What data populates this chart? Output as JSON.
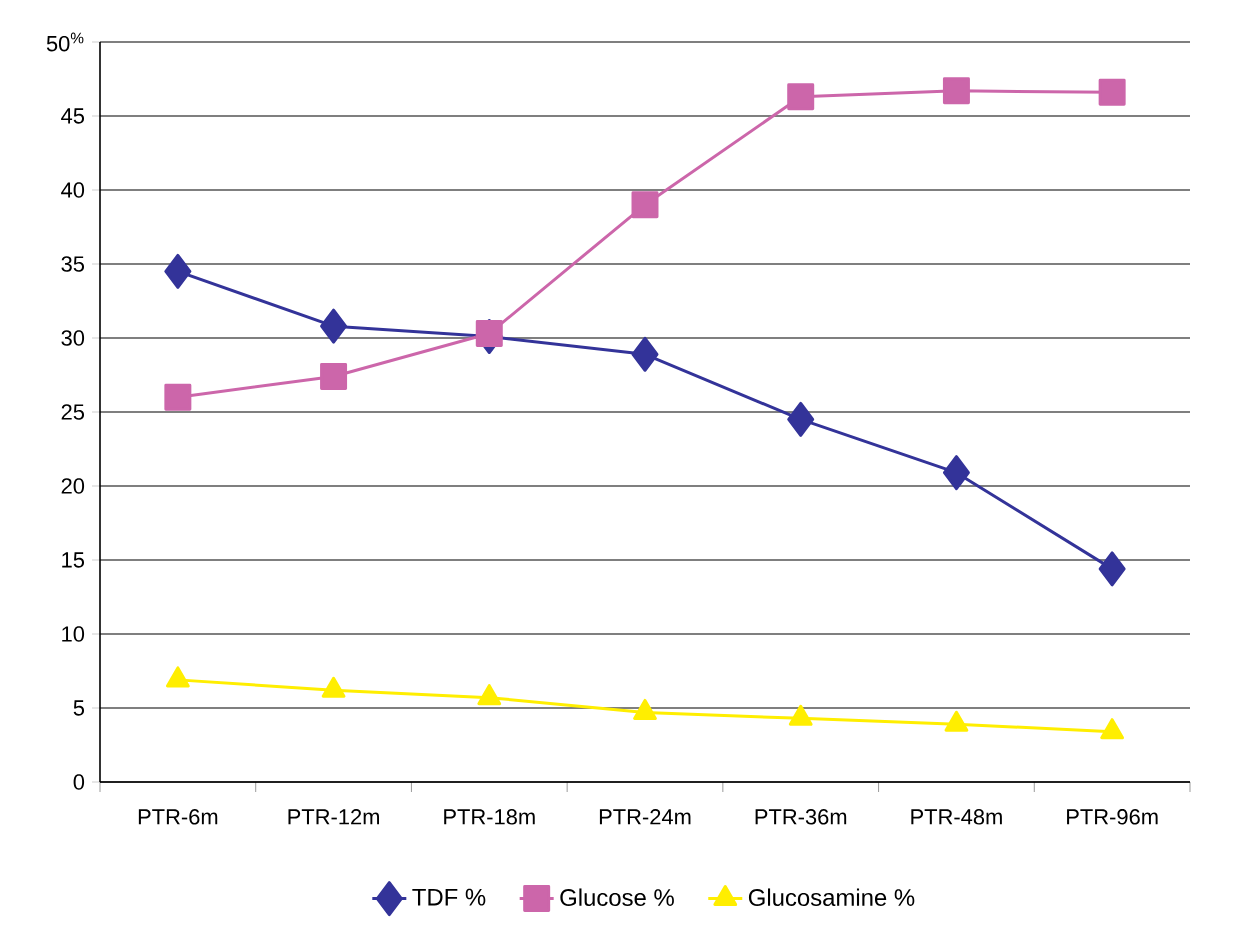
{
  "chart_data": {
    "type": "line",
    "categories": [
      "PTR-6m",
      "PTR-12m",
      "PTR-18m",
      "PTR-24m",
      "PTR-36m",
      "PTR-48m",
      "PTR-96m"
    ],
    "series": [
      {
        "name": "TDF %",
        "color": "#333399",
        "marker": "diamond",
        "values": [
          34.5,
          30.8,
          30.1,
          28.9,
          24.5,
          20.9,
          14.4
        ]
      },
      {
        "name": "Glucose %",
        "color": "#cc66aa",
        "marker": "square",
        "values": [
          26.0,
          27.4,
          30.3,
          39.0,
          46.3,
          46.7,
          46.6
        ]
      },
      {
        "name": "Glucosamine %",
        "color": "#ffee00",
        "marker": "triangle",
        "values": [
          6.9,
          6.2,
          5.7,
          4.7,
          4.3,
          3.9,
          3.4
        ]
      }
    ],
    "ylim": [
      0,
      50
    ],
    "yticks": [
      0,
      5,
      10,
      15,
      20,
      25,
      30,
      35,
      40,
      45,
      {
        "value": 50,
        "label": "50$^{%}$"
      }
    ],
    "grid": "y",
    "legend": "bottom",
    "line_style": "solid"
  }
}
